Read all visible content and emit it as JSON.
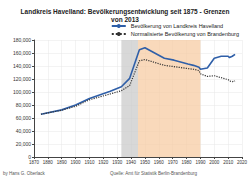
{
  "chart_data": {
    "type": "line",
    "title": "Landkreis Havelland: Bevölkerungsentwicklung seit 1875 - Grenzen\nvon 2013",
    "x": [
      1875,
      1890,
      1900,
      1910,
      1925,
      1933,
      1939,
      1946,
      1950,
      1964,
      1971,
      1981,
      1985,
      1989,
      1990,
      1995,
      2000,
      2005,
      2010,
      2011,
      2013,
      2015
    ],
    "series": [
      {
        "name": "Bevölkerung von Landkreis Havelland",
        "color": "#2f5fa8",
        "line_style": "solid",
        "marker": "none",
        "values": [
          65800,
          72500,
          80000,
          90000,
          101000,
          108000,
          121000,
          165000,
          168000,
          152000,
          149000,
          143000,
          141000,
          138000,
          135000,
          137000,
          152000,
          155000,
          155000,
          153000,
          155000,
          158000
        ]
      },
      {
        "name": "Normalisierte Bevölkerung von Brandenburg",
        "color": "#333333",
        "line_style": "dotted",
        "marker": "none",
        "values": [
          65800,
          72000,
          78000,
          88000,
          97000,
          102000,
          110000,
          148000,
          150000,
          141000,
          139000,
          136000,
          135000,
          133000,
          128000,
          124000,
          125000,
          122000,
          119000,
          117000,
          116000,
          117000
        ]
      }
    ],
    "shaded_ranges": [
      {
        "from": 1933,
        "to": 1945,
        "color": "#c8c8c8"
      },
      {
        "from": 1945,
        "to": 1990,
        "color": "#f7c99e"
      }
    ],
    "xlim": [
      1870,
      2020
    ],
    "xticks": [
      1870,
      1880,
      1890,
      1900,
      1910,
      1920,
      1930,
      1940,
      1950,
      1960,
      1970,
      1980,
      1990,
      2000,
      2010,
      2020
    ],
    "ylim": [
      0,
      180000
    ],
    "yticks": [
      0,
      {
        "value": 20000,
        "label": "20,000"
      },
      {
        "value": 40000,
        "label": "40,000"
      },
      {
        "value": 60000,
        "label": "60,000"
      },
      {
        "value": 80000,
        "label": "80,000"
      },
      {
        "value": 100000,
        "label": "100,000"
      },
      {
        "value": 120000,
        "label": "120,000"
      },
      {
        "value": 140000,
        "label": "140,000"
      },
      {
        "value": 160000,
        "label": "160,000"
      },
      {
        "value": 180000,
        "label": "180,000"
      }
    ],
    "grid": true,
    "legend": "top-right",
    "annotations": [
      {
        "text": "by Hans G. Oberlack",
        "position": "bottom-left"
      },
      {
        "text": "Quelle: Amt für Statistik Berlin-Brandenburg",
        "position": "bottom-center"
      }
    ]
  }
}
